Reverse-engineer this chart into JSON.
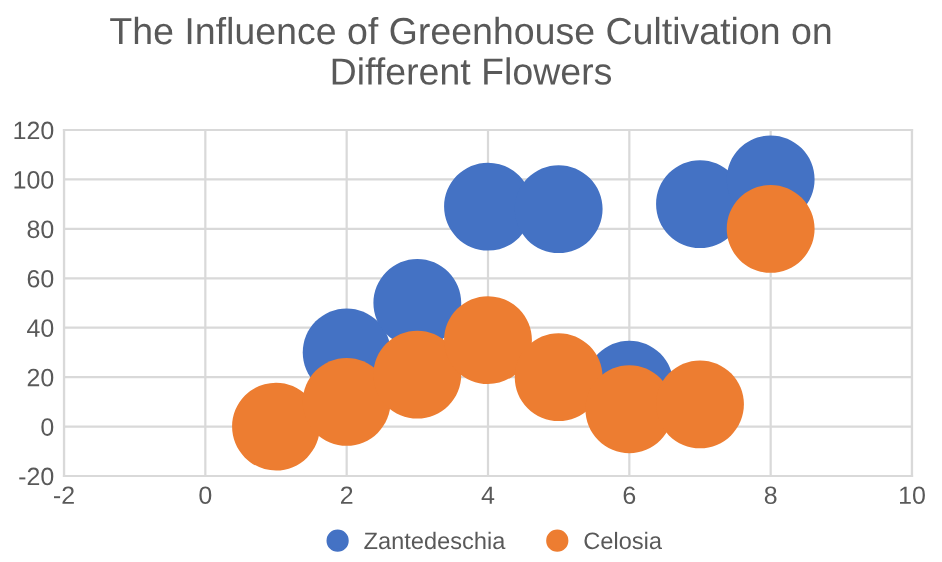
{
  "chart_data": {
    "type": "bubble",
    "title": "The Influence of Greenhouse Cultivation on\nDifferent Flowers",
    "series": [
      {
        "name": "Zantedeschia",
        "color": "#4472c4",
        "x": [
          2,
          3,
          4,
          5,
          6,
          7,
          8
        ],
        "values": [
          30,
          50,
          89,
          88,
          17,
          90,
          100
        ],
        "sizes": [
          1,
          1,
          1,
          1,
          1,
          1,
          1
        ]
      },
      {
        "name": "Celosia",
        "color": "#ed7d31",
        "x": [
          1,
          2,
          3,
          4,
          5,
          6,
          7,
          8
        ],
        "values": [
          0,
          10,
          21,
          35,
          20,
          7,
          9,
          80
        ],
        "sizes": [
          1,
          1,
          1,
          1,
          1,
          1,
          1,
          1
        ]
      }
    ],
    "xlim": [
      -2,
      10
    ],
    "xticks": [
      -2,
      0,
      2,
      4,
      6,
      8,
      10
    ],
    "ylim": [
      -20,
      120
    ],
    "yticks": [
      -20,
      0,
      20,
      40,
      60,
      80,
      100,
      120
    ],
    "grid": true,
    "legend": "bottom"
  }
}
